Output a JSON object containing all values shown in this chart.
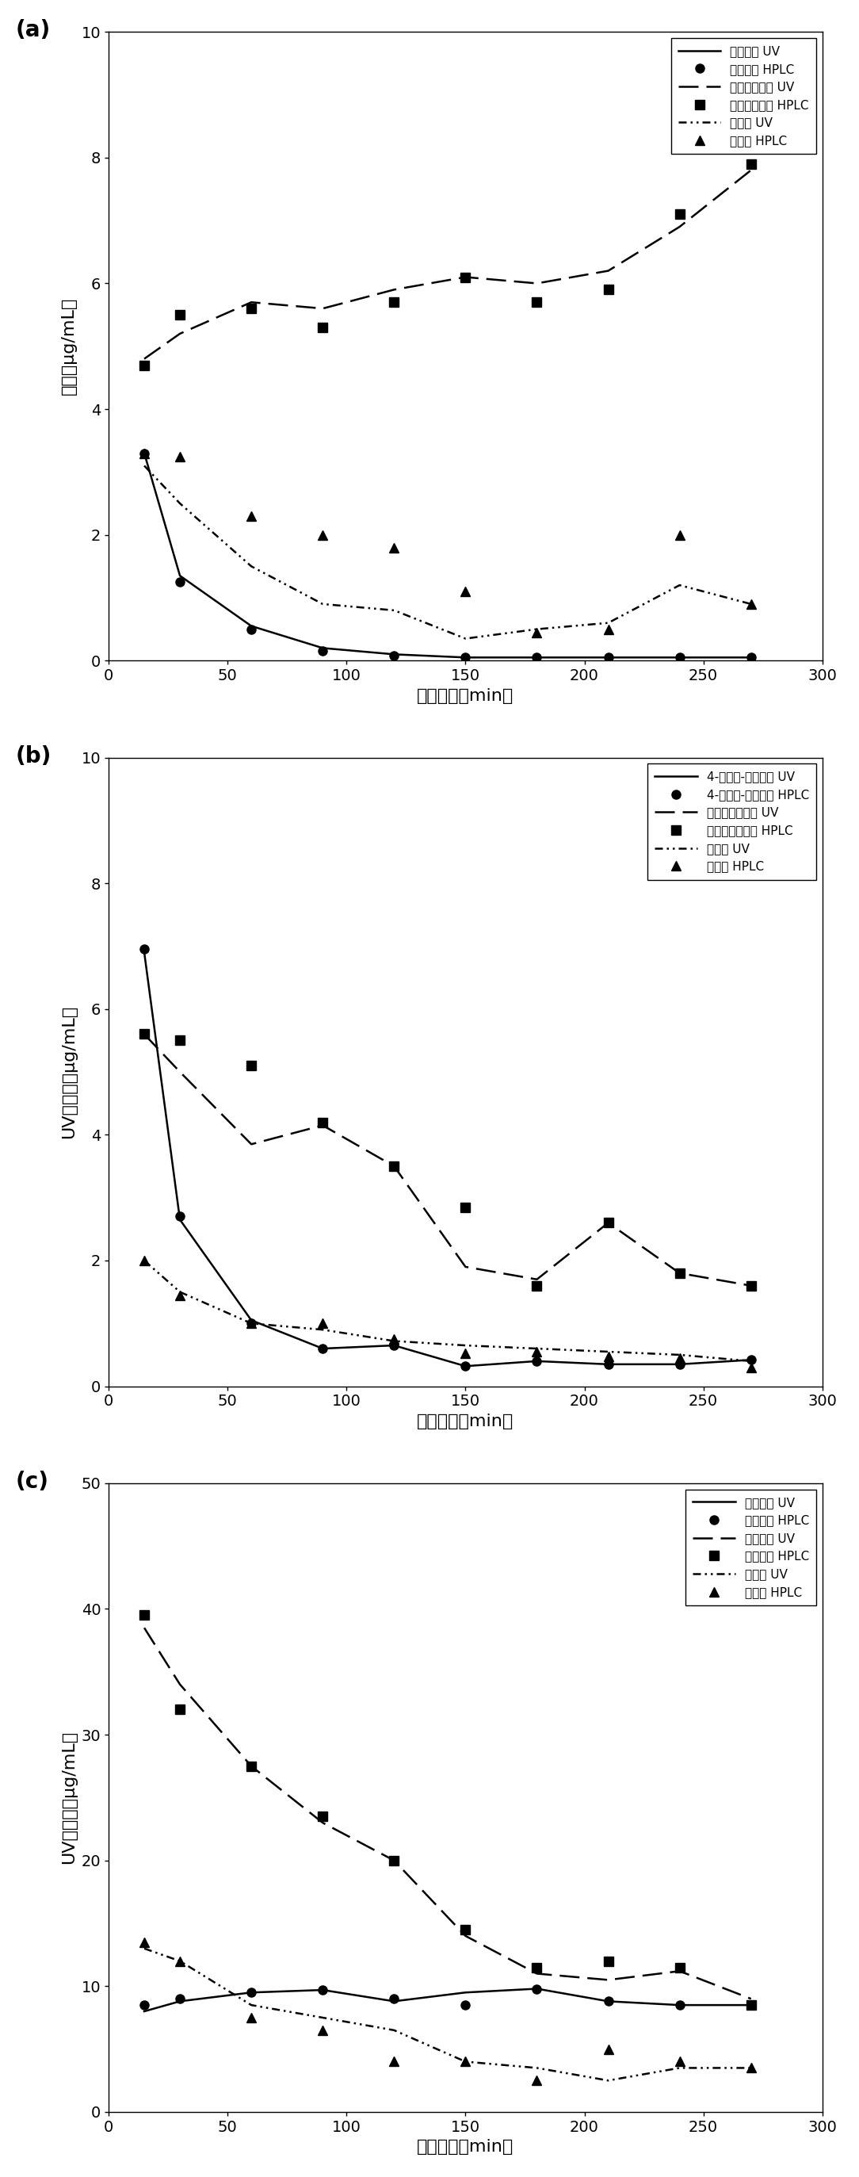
{
  "panel_a": {
    "label": "(a)",
    "ylabel": "含量（μg/mL）",
    "xlabel": "提取时间（min）",
    "ylim": [
      0,
      10
    ],
    "yticks": [
      0,
      2,
      4,
      6,
      8,
      10
    ],
    "xticks": [
      0,
      50,
      100,
      150,
      200,
      250,
      300
    ],
    "series": [
      {
        "name": "异佛尔酮 UV",
        "linestyle": "solid",
        "marker": null,
        "x": [
          15,
          30,
          60,
          90,
          120,
          150,
          180,
          210,
          240,
          270
        ],
        "y": [
          3.3,
          1.35,
          0.55,
          0.2,
          0.1,
          0.05,
          0.05,
          0.05,
          0.05,
          0.05
        ]
      },
      {
        "name": "异佛尔酮 HPLC",
        "linestyle": "none",
        "marker": "o",
        "x": [
          15,
          30,
          60,
          90,
          120,
          150,
          180,
          210,
          240,
          270
        ],
        "y": [
          3.3,
          1.25,
          0.5,
          0.15,
          0.08,
          0.05,
          0.05,
          0.05,
          0.05,
          0.05
        ]
      },
      {
        "name": "莪术双环烯酮 UV",
        "linestyle": "dashed",
        "marker": null,
        "x": [
          15,
          30,
          60,
          90,
          120,
          150,
          180,
          210,
          240,
          270
        ],
        "y": [
          4.8,
          5.2,
          5.7,
          5.6,
          5.9,
          6.1,
          6.0,
          6.2,
          6.9,
          7.8
        ]
      },
      {
        "name": "莪术双环烯酮 HPLC",
        "linestyle": "none",
        "marker": "s",
        "x": [
          15,
          30,
          60,
          90,
          120,
          150,
          180,
          210,
          240,
          270
        ],
        "y": [
          4.7,
          5.5,
          5.6,
          5.3,
          5.7,
          6.1,
          5.7,
          5.9,
          7.1,
          7.9
        ]
      },
      {
        "name": "吉马酮 UV",
        "linestyle": "dotted",
        "marker": null,
        "x": [
          15,
          30,
          60,
          90,
          120,
          150,
          180,
          210,
          240,
          270
        ],
        "y": [
          3.1,
          2.5,
          1.5,
          0.9,
          0.8,
          0.35,
          0.5,
          0.6,
          1.2,
          0.9
        ]
      },
      {
        "name": "吉马酮 HPLC",
        "linestyle": "none",
        "marker": "^",
        "x": [
          15,
          30,
          60,
          90,
          120,
          150,
          180,
          210,
          240,
          270
        ],
        "y": [
          3.3,
          3.25,
          2.3,
          2.0,
          1.8,
          1.1,
          0.45,
          0.5,
          2.0,
          0.9
        ]
      }
    ]
  },
  "panel_b": {
    "label": "(b)",
    "ylabel": "UV测定值（μg/mL）",
    "xlabel": "提取时间（min）",
    "ylim": [
      0,
      10
    ],
    "yticks": [
      0,
      2,
      4,
      6,
      8,
      10
    ],
    "xticks": [
      0,
      50,
      100,
      150,
      200,
      250,
      300
    ],
    "series": [
      {
        "name": "4-亚甲基-异佛尔酮 UV",
        "linestyle": "solid",
        "marker": null,
        "x": [
          15,
          30,
          60,
          90,
          120,
          150,
          180,
          210,
          240,
          270
        ],
        "y": [
          6.9,
          2.65,
          1.05,
          0.6,
          0.65,
          0.32,
          0.4,
          0.35,
          0.35,
          0.42
        ]
      },
      {
        "name": "4-亚甲基-异佛尔酮 HPLC",
        "linestyle": "none",
        "marker": "o",
        "x": [
          15,
          30,
          60,
          90,
          120,
          150,
          180,
          210,
          240,
          270
        ],
        "y": [
          6.95,
          2.7,
          1.0,
          0.6,
          0.65,
          0.32,
          0.4,
          0.35,
          0.35,
          0.42
        ]
      },
      {
        "name": "莪术呆喂二烯酮 UV",
        "linestyle": "dashed",
        "marker": null,
        "x": [
          15,
          30,
          60,
          90,
          120,
          150,
          180,
          210,
          240,
          270
        ],
        "y": [
          5.6,
          5.0,
          3.85,
          4.15,
          3.5,
          1.9,
          1.7,
          2.6,
          1.8,
          1.6
        ]
      },
      {
        "name": "莪术呆喂二烯酮 HPLC",
        "linestyle": "none",
        "marker": "s",
        "x": [
          15,
          30,
          60,
          90,
          120,
          150,
          180,
          210,
          240,
          270
        ],
        "y": [
          5.6,
          5.5,
          5.1,
          4.2,
          3.5,
          2.85,
          1.6,
          2.6,
          1.8,
          1.6
        ]
      },
      {
        "name": "莪术醇 UV",
        "linestyle": "dotted",
        "marker": null,
        "x": [
          15,
          30,
          60,
          90,
          120,
          150,
          180,
          210,
          240,
          270
        ],
        "y": [
          2.0,
          1.5,
          1.0,
          0.9,
          0.72,
          0.65,
          0.6,
          0.55,
          0.5,
          0.4
        ]
      },
      {
        "name": "莪术醇 HPLC",
        "linestyle": "none",
        "marker": "^",
        "x": [
          15,
          30,
          60,
          90,
          120,
          150,
          180,
          210,
          240,
          270
        ],
        "y": [
          2.0,
          1.45,
          1.0,
          1.0,
          0.75,
          0.52,
          0.55,
          0.48,
          0.45,
          0.3
        ]
      }
    ]
  },
  "panel_c": {
    "label": "(c)",
    "ylabel": "UV测定值（μg/mL）",
    "xlabel": "提取时间（min）",
    "ylim": [
      0,
      50
    ],
    "yticks": [
      0,
      10,
      20,
      30,
      40,
      50
    ],
    "xticks": [
      0,
      50,
      100,
      150,
      200,
      250,
      300
    ],
    "series": [
      {
        "name": "莪术烯醇 UV",
        "linestyle": "solid",
        "marker": null,
        "x": [
          15,
          30,
          60,
          90,
          120,
          150,
          180,
          210,
          240,
          270
        ],
        "y": [
          8.0,
          8.8,
          9.5,
          9.7,
          8.8,
          9.5,
          9.8,
          8.8,
          8.5,
          8.5
        ]
      },
      {
        "name": "莪术烯醇 HPLC",
        "linestyle": "none",
        "marker": "o",
        "x": [
          15,
          30,
          60,
          90,
          120,
          150,
          180,
          210,
          240,
          270
        ],
        "y": [
          8.5,
          9.0,
          9.5,
          9.7,
          9.0,
          8.5,
          9.8,
          8.8,
          8.5,
          8.5
        ]
      },
      {
        "name": "莪术二酮 UV",
        "linestyle": "dashed",
        "marker": null,
        "x": [
          15,
          30,
          60,
          90,
          120,
          150,
          180,
          210,
          240,
          270
        ],
        "y": [
          38.5,
          34.0,
          27.5,
          23.0,
          20.0,
          14.0,
          11.0,
          10.5,
          11.2,
          9.0
        ]
      },
      {
        "name": "莪术二酮 HPLC",
        "linestyle": "none",
        "marker": "s",
        "x": [
          15,
          30,
          60,
          90,
          120,
          150,
          180,
          210,
          240,
          270
        ],
        "y": [
          39.5,
          32.0,
          27.5,
          23.5,
          20.0,
          14.5,
          11.5,
          12.0,
          11.5,
          8.5
        ]
      },
      {
        "name": "莪术酮 UV",
        "linestyle": "dotted",
        "marker": null,
        "x": [
          15,
          30,
          60,
          90,
          120,
          150,
          180,
          210,
          240,
          270
        ],
        "y": [
          13.0,
          12.0,
          8.5,
          7.5,
          6.5,
          4.0,
          3.5,
          2.5,
          3.5,
          3.5
        ]
      },
      {
        "name": "莪术酮 HPLC",
        "linestyle": "none",
        "marker": "^",
        "x": [
          15,
          30,
          60,
          90,
          120,
          150,
          180,
          210,
          240,
          270
        ],
        "y": [
          13.5,
          12.0,
          7.5,
          6.5,
          4.0,
          4.0,
          2.5,
          5.0,
          4.0,
          3.5
        ]
      }
    ]
  }
}
